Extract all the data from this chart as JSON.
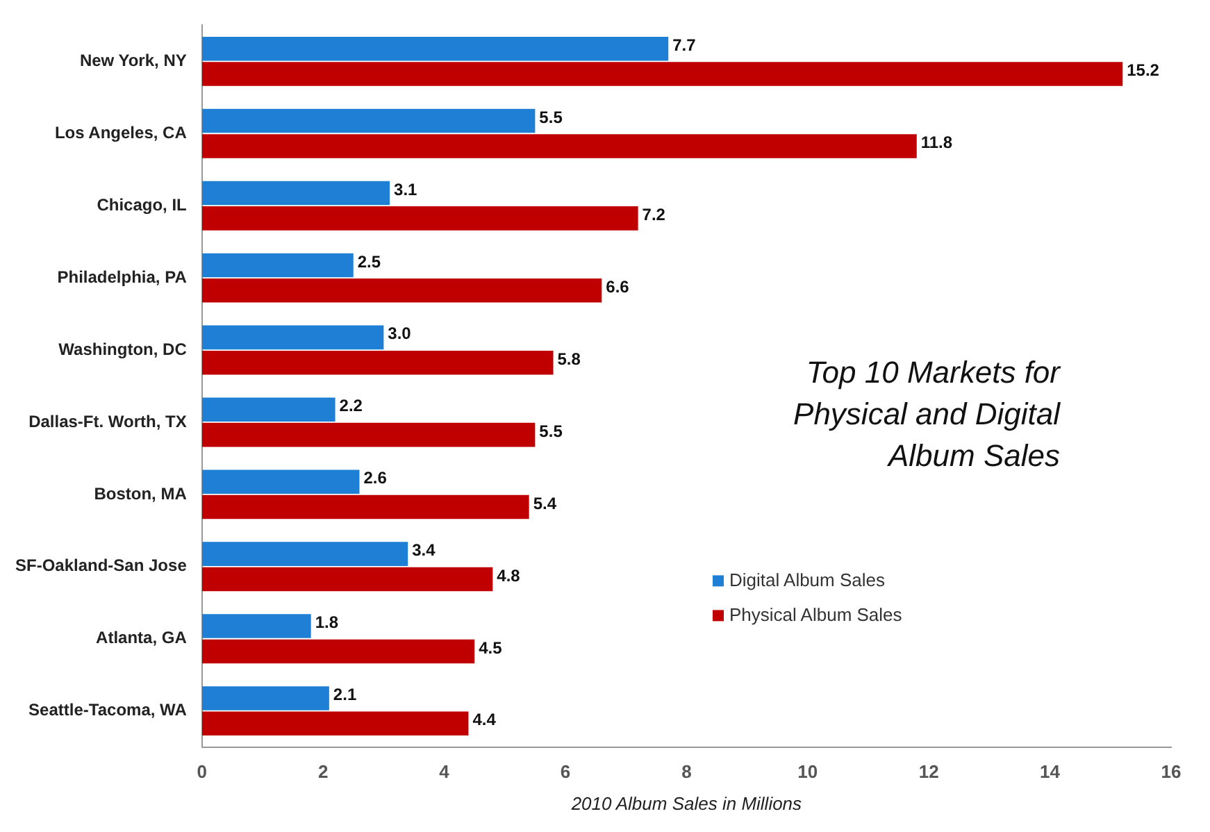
{
  "chart_data": {
    "type": "bar",
    "orientation": "horizontal",
    "title": "Top 10 Markets for Physical and Digital Album Sales",
    "xlabel": "2010 Album Sales in Millions",
    "categories": [
      "New York, NY",
      "Los Angeles, CA",
      "Chicago, IL",
      "Philadelphia, PA",
      "Washington, DC",
      "Dallas-Ft. Worth, TX",
      "Boston, MA",
      "SF-Oakland-San Jose",
      "Atlanta, GA",
      "Seattle-Tacoma, WA"
    ],
    "series": [
      {
        "name": "Digital Album Sales",
        "color": "#1f7fd4",
        "values": [
          7.7,
          5.5,
          3.1,
          2.5,
          3.0,
          2.2,
          2.6,
          3.4,
          1.8,
          2.1
        ],
        "value_labels": [
          "7.7",
          "5.5",
          "3.1",
          "2.5",
          "3.0",
          "2.2",
          "2.6",
          "3.4",
          "1.8",
          "2.1"
        ]
      },
      {
        "name": "Physical Album Sales",
        "color": "#c00000",
        "values": [
          15.2,
          11.8,
          7.2,
          6.6,
          5.8,
          5.5,
          5.4,
          4.8,
          4.5,
          4.4
        ],
        "value_labels": [
          "15.2",
          "11.8",
          "7.2",
          "6.6",
          "5.8",
          "5.5",
          "5.4",
          "4.8",
          "4.5",
          "4.4"
        ]
      }
    ],
    "xlim": [
      0,
      16
    ],
    "xticks": [
      0,
      2,
      4,
      6,
      8,
      10,
      12,
      14,
      16
    ],
    "legend": "right",
    "grid": false
  }
}
